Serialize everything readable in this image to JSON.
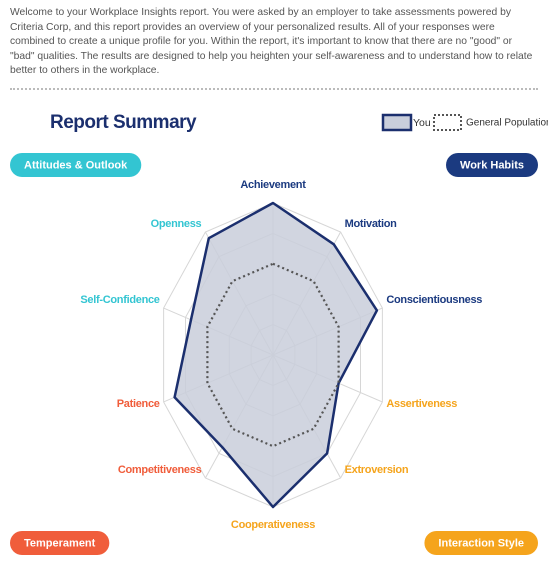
{
  "intro": "Welcome to your Workplace Insights report. You were asked by an employer to take assessments powered by Criteria Corp, and this report provides an overview of your personalized results. All of your responses were combined to create a unique profile for you. Within the report, it's important to know that there are no \"good\" or \"bad\" qualities. The results are designed to help you heighten your self-awareness and to understand how to relate better to others in the workplace.",
  "groups": [
    {
      "label": "Attitudes & Outlook",
      "color": "#33c5d2"
    },
    {
      "label": "Work Habits",
      "color": "#1b3a80"
    },
    {
      "label": "Temperament",
      "color": "#f05d3b"
    },
    {
      "label": "Interaction Style",
      "color": "#f5a41c"
    }
  ],
  "chart_data": {
    "type": "radar",
    "title": "Report Summary",
    "categories": [
      "Achievement",
      "Motivation",
      "Conscientiousness",
      "Assertiveness",
      "Extroversion",
      "Cooperativeness",
      "Competitiveness",
      "Patience",
      "Self-Confidence",
      "Openness"
    ],
    "category_colors": [
      "#1b3a80",
      "#1b3a80",
      "#1b3a80",
      "#f5a41c",
      "#f5a41c",
      "#f5a41c",
      "#f05d3b",
      "#f05d3b",
      "#33c5d2",
      "#33c5d2"
    ],
    "rlim": [
      0,
      10
    ],
    "rticks": [
      2,
      4,
      6,
      8,
      10
    ],
    "grid": true,
    "series": [
      {
        "name": "You",
        "color": "#1b2f6e",
        "fill": "#c9cedb",
        "values": [
          10,
          9,
          9.5,
          6,
          8,
          10,
          7.5,
          9,
          7.5,
          9.5
        ]
      },
      {
        "name": "General Population",
        "color": "#555555",
        "values": [
          6,
          6,
          6,
          6,
          6,
          6,
          6,
          6,
          6,
          6
        ]
      }
    ]
  }
}
